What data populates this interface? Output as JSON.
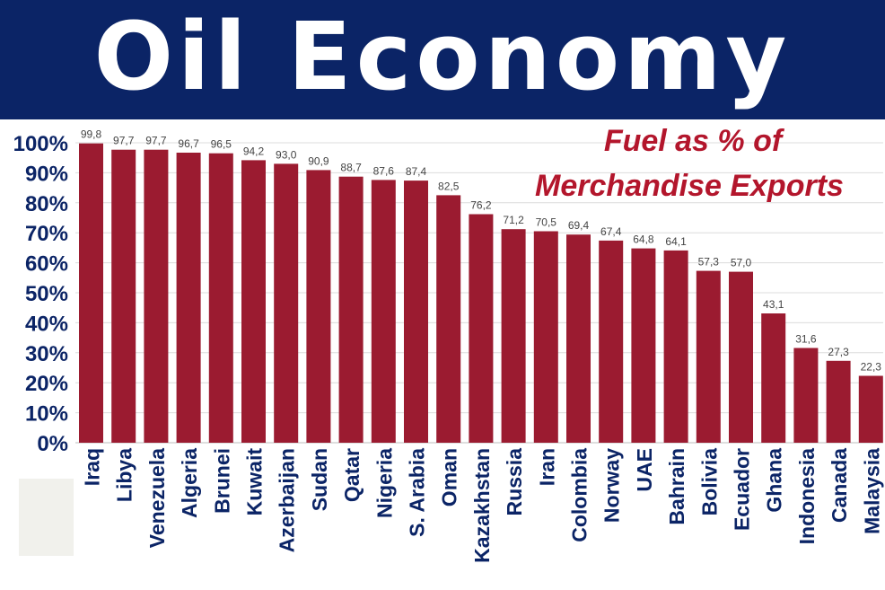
{
  "header": {
    "title": "Oil Economy"
  },
  "chart_data": {
    "type": "bar",
    "title": "Fuel as % of",
    "subtitle": "Merchandise Exports",
    "xlabel": "",
    "ylabel": "",
    "ylim": [
      0,
      100
    ],
    "grid": true,
    "legend": "none",
    "bar_color": "#9b1b30",
    "title_color": "#b3162c",
    "banner_color": "#0b2466",
    "y_ticks": [
      "0%",
      "10%",
      "20%",
      "30%",
      "40%",
      "50%",
      "60%",
      "70%",
      "80%",
      "90%",
      "100%"
    ],
    "categories": [
      "Iraq",
      "Libya",
      "Venezuela",
      "Algeria",
      "Brunei",
      "Kuwait",
      "Azerbaijan",
      "Sudan",
      "Qatar",
      "Nigeria",
      "S. Arabia",
      "Oman",
      "Kazakhstan",
      "Russia",
      "Iran",
      "Colombia",
      "Norway",
      "UAE",
      "Bahrain",
      "Bolivia",
      "Ecuador",
      "Ghana",
      "Indonesia",
      "Canada",
      "Malaysia"
    ],
    "values": [
      99.8,
      97.7,
      97.7,
      96.7,
      96.5,
      94.2,
      93.0,
      90.9,
      88.7,
      87.6,
      87.4,
      82.5,
      76.2,
      71.2,
      70.5,
      69.4,
      67.4,
      64.8,
      64.1,
      57.3,
      57.0,
      43.1,
      31.6,
      27.3,
      22.3
    ],
    "value_labels": [
      "99,8",
      "97,7",
      "97,7",
      "96,7",
      "96,5",
      "94,2",
      "93,0",
      "90,9",
      "88,7",
      "87,6",
      "87,4",
      "82,5",
      "76,2",
      "71,2",
      "70,5",
      "69,4",
      "67,4",
      "64,8",
      "64,1",
      "57,3",
      "57,0",
      "43,1",
      "31,6",
      "27,3",
      "22,3"
    ]
  }
}
